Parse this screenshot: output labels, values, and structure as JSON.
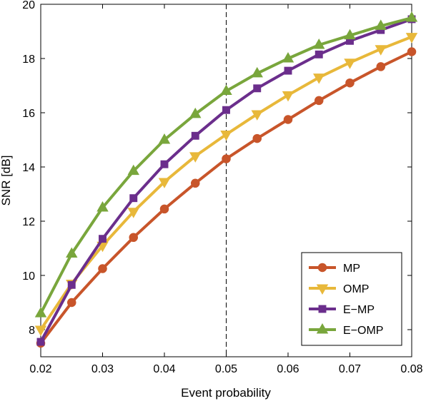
{
  "chart_data": {
    "type": "line",
    "xlabel": "Event probability",
    "ylabel": "SNR [dB]",
    "xlim": [
      0.02,
      0.08
    ],
    "ylim": [
      7,
      20
    ],
    "x_ticks": [
      "0.02",
      "0.03",
      "0.04",
      "0.05",
      "0.06",
      "0.07",
      "0.08"
    ],
    "y_ticks": [
      "8",
      "10",
      "12",
      "14",
      "16",
      "18",
      "20"
    ],
    "grid": false,
    "legend_position": "bottom-right",
    "reference_line": {
      "x": 0.05,
      "style": "dashed"
    },
    "x": [
      0.02,
      0.025,
      0.03,
      0.035,
      0.04,
      0.045,
      0.05,
      0.055,
      0.06,
      0.065,
      0.07,
      0.075,
      0.08
    ],
    "series": [
      {
        "name": "MP",
        "color": "#c8552a",
        "marker": "circle",
        "values": [
          7.5,
          9.0,
          10.25,
          11.4,
          12.45,
          13.4,
          14.3,
          15.05,
          15.75,
          16.45,
          17.1,
          17.7,
          18.25
        ]
      },
      {
        "name": "OMP",
        "color": "#e8b83a",
        "marker": "triangle-down",
        "values": [
          8.0,
          9.7,
          11.1,
          12.35,
          13.45,
          14.4,
          15.2,
          15.95,
          16.65,
          17.3,
          17.85,
          18.35,
          18.8
        ]
      },
      {
        "name": "E−MP",
        "color": "#6b2e8c",
        "marker": "square",
        "values": [
          7.55,
          9.65,
          11.35,
          12.85,
          14.1,
          15.15,
          16.1,
          16.9,
          17.55,
          18.15,
          18.65,
          19.05,
          19.45
        ]
      },
      {
        "name": "E−OMP",
        "color": "#79a63c",
        "marker": "triangle-up",
        "values": [
          8.6,
          10.8,
          12.5,
          13.85,
          15.0,
          15.95,
          16.8,
          17.45,
          18.0,
          18.5,
          18.85,
          19.2,
          19.5
        ]
      }
    ]
  }
}
